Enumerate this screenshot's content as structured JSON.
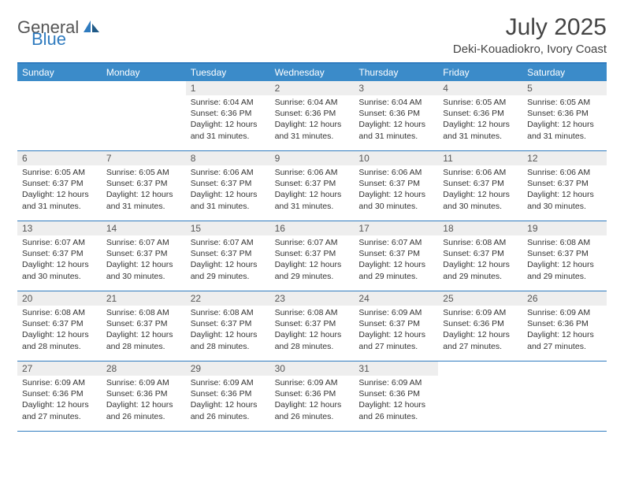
{
  "brand": {
    "part1": "General",
    "part2": "Blue"
  },
  "title": "July 2025",
  "location": "Deki-Kouadiokro, Ivory Coast",
  "colors": {
    "header_bg": "#3b8bc9",
    "border": "#2f7bbf",
    "daynum_bg": "#eeeeee",
    "text": "#333333",
    "brand_gray": "#555555",
    "brand_blue": "#2f7bbf"
  },
  "days_of_week": [
    "Sunday",
    "Monday",
    "Tuesday",
    "Wednesday",
    "Thursday",
    "Friday",
    "Saturday"
  ],
  "weeks": [
    [
      {
        "n": "",
        "sr": "",
        "ss": "",
        "dl": ""
      },
      {
        "n": "",
        "sr": "",
        "ss": "",
        "dl": ""
      },
      {
        "n": "1",
        "sr": "Sunrise: 6:04 AM",
        "ss": "Sunset: 6:36 PM",
        "dl": "Daylight: 12 hours and 31 minutes."
      },
      {
        "n": "2",
        "sr": "Sunrise: 6:04 AM",
        "ss": "Sunset: 6:36 PM",
        "dl": "Daylight: 12 hours and 31 minutes."
      },
      {
        "n": "3",
        "sr": "Sunrise: 6:04 AM",
        "ss": "Sunset: 6:36 PM",
        "dl": "Daylight: 12 hours and 31 minutes."
      },
      {
        "n": "4",
        "sr": "Sunrise: 6:05 AM",
        "ss": "Sunset: 6:36 PM",
        "dl": "Daylight: 12 hours and 31 minutes."
      },
      {
        "n": "5",
        "sr": "Sunrise: 6:05 AM",
        "ss": "Sunset: 6:36 PM",
        "dl": "Daylight: 12 hours and 31 minutes."
      }
    ],
    [
      {
        "n": "6",
        "sr": "Sunrise: 6:05 AM",
        "ss": "Sunset: 6:37 PM",
        "dl": "Daylight: 12 hours and 31 minutes."
      },
      {
        "n": "7",
        "sr": "Sunrise: 6:05 AM",
        "ss": "Sunset: 6:37 PM",
        "dl": "Daylight: 12 hours and 31 minutes."
      },
      {
        "n": "8",
        "sr": "Sunrise: 6:06 AM",
        "ss": "Sunset: 6:37 PM",
        "dl": "Daylight: 12 hours and 31 minutes."
      },
      {
        "n": "9",
        "sr": "Sunrise: 6:06 AM",
        "ss": "Sunset: 6:37 PM",
        "dl": "Daylight: 12 hours and 31 minutes."
      },
      {
        "n": "10",
        "sr": "Sunrise: 6:06 AM",
        "ss": "Sunset: 6:37 PM",
        "dl": "Daylight: 12 hours and 30 minutes."
      },
      {
        "n": "11",
        "sr": "Sunrise: 6:06 AM",
        "ss": "Sunset: 6:37 PM",
        "dl": "Daylight: 12 hours and 30 minutes."
      },
      {
        "n": "12",
        "sr": "Sunrise: 6:06 AM",
        "ss": "Sunset: 6:37 PM",
        "dl": "Daylight: 12 hours and 30 minutes."
      }
    ],
    [
      {
        "n": "13",
        "sr": "Sunrise: 6:07 AM",
        "ss": "Sunset: 6:37 PM",
        "dl": "Daylight: 12 hours and 30 minutes."
      },
      {
        "n": "14",
        "sr": "Sunrise: 6:07 AM",
        "ss": "Sunset: 6:37 PM",
        "dl": "Daylight: 12 hours and 30 minutes."
      },
      {
        "n": "15",
        "sr": "Sunrise: 6:07 AM",
        "ss": "Sunset: 6:37 PM",
        "dl": "Daylight: 12 hours and 29 minutes."
      },
      {
        "n": "16",
        "sr": "Sunrise: 6:07 AM",
        "ss": "Sunset: 6:37 PM",
        "dl": "Daylight: 12 hours and 29 minutes."
      },
      {
        "n": "17",
        "sr": "Sunrise: 6:07 AM",
        "ss": "Sunset: 6:37 PM",
        "dl": "Daylight: 12 hours and 29 minutes."
      },
      {
        "n": "18",
        "sr": "Sunrise: 6:08 AM",
        "ss": "Sunset: 6:37 PM",
        "dl": "Daylight: 12 hours and 29 minutes."
      },
      {
        "n": "19",
        "sr": "Sunrise: 6:08 AM",
        "ss": "Sunset: 6:37 PM",
        "dl": "Daylight: 12 hours and 29 minutes."
      }
    ],
    [
      {
        "n": "20",
        "sr": "Sunrise: 6:08 AM",
        "ss": "Sunset: 6:37 PM",
        "dl": "Daylight: 12 hours and 28 minutes."
      },
      {
        "n": "21",
        "sr": "Sunrise: 6:08 AM",
        "ss": "Sunset: 6:37 PM",
        "dl": "Daylight: 12 hours and 28 minutes."
      },
      {
        "n": "22",
        "sr": "Sunrise: 6:08 AM",
        "ss": "Sunset: 6:37 PM",
        "dl": "Daylight: 12 hours and 28 minutes."
      },
      {
        "n": "23",
        "sr": "Sunrise: 6:08 AM",
        "ss": "Sunset: 6:37 PM",
        "dl": "Daylight: 12 hours and 28 minutes."
      },
      {
        "n": "24",
        "sr": "Sunrise: 6:09 AM",
        "ss": "Sunset: 6:37 PM",
        "dl": "Daylight: 12 hours and 27 minutes."
      },
      {
        "n": "25",
        "sr": "Sunrise: 6:09 AM",
        "ss": "Sunset: 6:36 PM",
        "dl": "Daylight: 12 hours and 27 minutes."
      },
      {
        "n": "26",
        "sr": "Sunrise: 6:09 AM",
        "ss": "Sunset: 6:36 PM",
        "dl": "Daylight: 12 hours and 27 minutes."
      }
    ],
    [
      {
        "n": "27",
        "sr": "Sunrise: 6:09 AM",
        "ss": "Sunset: 6:36 PM",
        "dl": "Daylight: 12 hours and 27 minutes."
      },
      {
        "n": "28",
        "sr": "Sunrise: 6:09 AM",
        "ss": "Sunset: 6:36 PM",
        "dl": "Daylight: 12 hours and 26 minutes."
      },
      {
        "n": "29",
        "sr": "Sunrise: 6:09 AM",
        "ss": "Sunset: 6:36 PM",
        "dl": "Daylight: 12 hours and 26 minutes."
      },
      {
        "n": "30",
        "sr": "Sunrise: 6:09 AM",
        "ss": "Sunset: 6:36 PM",
        "dl": "Daylight: 12 hours and 26 minutes."
      },
      {
        "n": "31",
        "sr": "Sunrise: 6:09 AM",
        "ss": "Sunset: 6:36 PM",
        "dl": "Daylight: 12 hours and 26 minutes."
      },
      {
        "n": "",
        "sr": "",
        "ss": "",
        "dl": ""
      },
      {
        "n": "",
        "sr": "",
        "ss": "",
        "dl": ""
      }
    ]
  ]
}
